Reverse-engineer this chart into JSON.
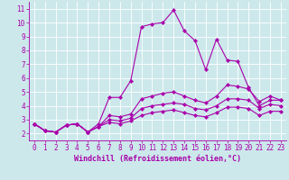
{
  "xlabel": "Windchill (Refroidissement éolien,°C)",
  "background_color": "#cce8eb",
  "line_color": "#aa00aa",
  "grid_color": "#ffffff",
  "xlim": [
    -0.5,
    23.5
  ],
  "ylim": [
    1.5,
    11.5
  ],
  "xticks": [
    0,
    1,
    2,
    3,
    4,
    5,
    6,
    7,
    8,
    9,
    10,
    11,
    12,
    13,
    14,
    15,
    16,
    17,
    18,
    19,
    20,
    21,
    22,
    23
  ],
  "yticks": [
    2,
    3,
    4,
    5,
    6,
    7,
    8,
    9,
    10,
    11
  ],
  "series": [
    [
      2.7,
      2.2,
      2.1,
      2.6,
      2.7,
      2.1,
      2.7,
      4.6,
      4.6,
      5.8,
      9.7,
      9.9,
      10.0,
      10.9,
      9.4,
      8.7,
      6.6,
      8.8,
      7.3,
      7.2,
      5.3,
      4.0,
      4.4,
      4.4
    ],
    [
      2.7,
      2.2,
      2.1,
      2.6,
      2.7,
      2.1,
      2.5,
      3.3,
      3.2,
      3.4,
      4.5,
      4.7,
      4.9,
      5.0,
      4.7,
      4.4,
      4.2,
      4.7,
      5.5,
      5.4,
      5.2,
      4.3,
      4.7,
      4.4
    ],
    [
      2.7,
      2.2,
      2.1,
      2.6,
      2.7,
      2.1,
      2.5,
      3.0,
      2.9,
      3.1,
      3.8,
      4.0,
      4.1,
      4.2,
      4.1,
      3.8,
      3.7,
      4.0,
      4.5,
      4.5,
      4.4,
      3.8,
      4.1,
      4.0
    ],
    [
      2.7,
      2.2,
      2.1,
      2.6,
      2.7,
      2.1,
      2.5,
      2.8,
      2.7,
      2.9,
      3.3,
      3.5,
      3.6,
      3.7,
      3.5,
      3.3,
      3.2,
      3.5,
      3.9,
      3.9,
      3.8,
      3.3,
      3.6,
      3.6
    ]
  ],
  "tick_fontsize": 5.5,
  "xlabel_fontsize": 6.0,
  "linewidth": 0.8,
  "markersize": 2.2
}
